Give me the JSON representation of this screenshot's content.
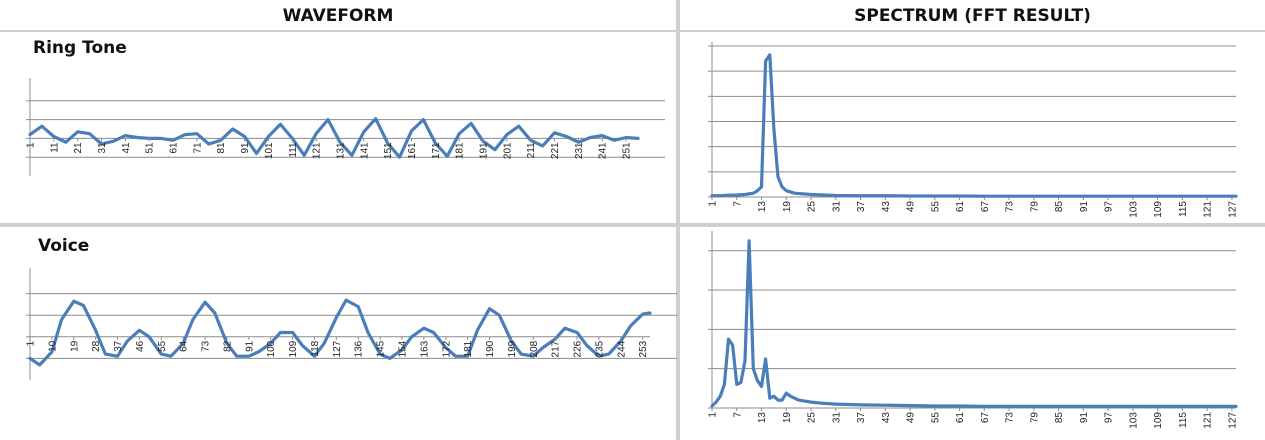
{
  "headers": {
    "left": "WAVEFORM",
    "right": "SPECTRUM (FFT RESULT)"
  },
  "panels": {
    "ring_label": "Ring Tone",
    "voice_label": "Voice"
  },
  "colors": {
    "line": "#4a7ebb",
    "grid": "#8c8c8c",
    "axis": "#8c8c8c",
    "separator": "#cfcfcf"
  },
  "chart_data": [
    {
      "id": "ring-waveform",
      "type": "line",
      "title": "",
      "xlabel": "",
      "ylabel": "",
      "x_ticks": [
        "1",
        "11",
        "21",
        "31",
        "41",
        "51",
        "61",
        "71",
        "81",
        "91",
        "101",
        "111",
        "121",
        "131",
        "141",
        "151",
        "161",
        "171",
        "181",
        "191",
        "201",
        "211",
        "221",
        "231",
        "241",
        "251"
      ],
      "ylim": [
        -2,
        3
      ],
      "x": [
        1,
        6,
        11,
        16,
        21,
        26,
        31,
        36,
        41,
        46,
        51,
        56,
        61,
        66,
        71,
        76,
        81,
        86,
        91,
        96,
        101,
        106,
        111,
        116,
        121,
        126,
        131,
        136,
        141,
        146,
        151,
        156,
        161,
        166,
        171,
        176,
        181,
        186,
        191,
        196,
        201,
        206,
        211,
        216,
        221,
        226,
        231,
        236,
        241,
        246,
        251,
        256
      ],
      "values": [
        0.2,
        0.65,
        0.1,
        -0.2,
        0.35,
        0.25,
        -0.3,
        -0.15,
        0.15,
        0.05,
        0.0,
        0.0,
        -0.1,
        0.2,
        0.25,
        -0.3,
        -0.1,
        0.5,
        0.1,
        -0.8,
        0.1,
        0.75,
        0.0,
        -0.9,
        0.25,
        1.0,
        -0.2,
        -0.9,
        0.35,
        1.05,
        -0.25,
        -1.0,
        0.4,
        1.0,
        -0.25,
        -0.95,
        0.25,
        0.8,
        -0.15,
        -0.6,
        0.2,
        0.65,
        -0.1,
        -0.4,
        0.3,
        0.1,
        -0.2,
        0.05,
        0.15,
        -0.1,
        0.05,
        0.0
      ]
    },
    {
      "id": "ring-spectrum",
      "type": "line",
      "title": "",
      "xlabel": "",
      "ylabel": "",
      "x_ticks": [
        "1",
        "7",
        "13",
        "19",
        "25",
        "31",
        "37",
        "43",
        "49",
        "55",
        "61",
        "67",
        "73",
        "79",
        "85",
        "91",
        "97",
        "103",
        "109",
        "115",
        "121",
        "127"
      ],
      "ylim": [
        0,
        6
      ],
      "x": [
        1,
        3,
        5,
        7,
        9,
        11,
        12,
        13,
        14,
        15,
        16,
        17,
        18,
        19,
        21,
        25,
        31,
        37,
        43,
        49,
        55,
        61,
        67,
        73,
        79,
        85,
        91,
        97,
        103,
        109,
        115,
        121,
        127,
        128
      ],
      "values": [
        0.05,
        0.05,
        0.07,
        0.08,
        0.1,
        0.15,
        0.25,
        0.4,
        5.4,
        5.65,
        2.7,
        0.8,
        0.4,
        0.25,
        0.15,
        0.1,
        0.06,
        0.05,
        0.05,
        0.04,
        0.04,
        0.04,
        0.03,
        0.03,
        0.03,
        0.03,
        0.03,
        0.03,
        0.03,
        0.03,
        0.03,
        0.03,
        0.03,
        0.03
      ]
    },
    {
      "id": "voice-waveform",
      "type": "line",
      "title": "",
      "xlabel": "",
      "ylabel": "",
      "x_ticks": [
        "1",
        "10",
        "19",
        "28",
        "37",
        "46",
        "55",
        "64",
        "73",
        "82",
        "91",
        "100",
        "109",
        "118",
        "127",
        "136",
        "145",
        "154",
        "163",
        "172",
        "181",
        "190",
        "199",
        "208",
        "217",
        "226",
        "235",
        "244",
        "253"
      ],
      "ylim": [
        -2,
        3
      ],
      "x": [
        1,
        5,
        10,
        14,
        19,
        23,
        28,
        32,
        37,
        41,
        46,
        50,
        55,
        59,
        64,
        68,
        73,
        77,
        82,
        86,
        91,
        95,
        100,
        104,
        109,
        113,
        118,
        122,
        127,
        131,
        136,
        140,
        145,
        149,
        154,
        158,
        163,
        167,
        172,
        176,
        181,
        185,
        190,
        194,
        199,
        203,
        208,
        212,
        217,
        221,
        226,
        230,
        235,
        239,
        244,
        248,
        253,
        256
      ],
      "values": [
        -1.0,
        -1.3,
        -0.7,
        0.8,
        1.65,
        1.45,
        0.3,
        -0.8,
        -0.9,
        -0.2,
        0.3,
        0.0,
        -0.8,
        -0.9,
        -0.3,
        0.8,
        1.6,
        1.1,
        -0.3,
        -0.9,
        -0.9,
        -0.7,
        -0.3,
        0.2,
        0.2,
        -0.4,
        -0.9,
        -0.3,
        0.9,
        1.7,
        1.4,
        0.2,
        -0.8,
        -1.0,
        -0.6,
        0.0,
        0.4,
        0.2,
        -0.5,
        -0.9,
        -0.9,
        0.3,
        1.3,
        1.0,
        -0.2,
        -0.8,
        -0.9,
        -0.5,
        -0.1,
        0.4,
        0.2,
        -0.4,
        -0.9,
        -0.8,
        -0.2,
        0.5,
        1.05,
        1.1
      ]
    },
    {
      "id": "voice-spectrum",
      "type": "line",
      "title": "",
      "xlabel": "",
      "ylabel": "",
      "x_ticks": [
        "1",
        "7",
        "13",
        "19",
        "25",
        "31",
        "37",
        "43",
        "49",
        "55",
        "61",
        "67",
        "73",
        "79",
        "85",
        "91",
        "97",
        "103",
        "109",
        "115",
        "121",
        "127"
      ],
      "ylim": [
        0,
        4.4
      ],
      "x": [
        1,
        2,
        3,
        4,
        5,
        6,
        7,
        8,
        9,
        10,
        11,
        12,
        13,
        14,
        15,
        16,
        17,
        18,
        19,
        20,
        22,
        25,
        28,
        31,
        37,
        43,
        49,
        55,
        61,
        67,
        73,
        79,
        85,
        91,
        97,
        103,
        109,
        115,
        121,
        127,
        128
      ],
      "values": [
        0.05,
        0.15,
        0.3,
        0.6,
        1.75,
        1.6,
        0.6,
        0.65,
        1.2,
        4.25,
        1.0,
        0.7,
        0.55,
        1.25,
        0.25,
        0.3,
        0.2,
        0.2,
        0.38,
        0.3,
        0.2,
        0.15,
        0.12,
        0.1,
        0.08,
        0.07,
        0.06,
        0.05,
        0.05,
        0.04,
        0.04,
        0.04,
        0.04,
        0.04,
        0.04,
        0.04,
        0.04,
        0.04,
        0.04,
        0.04,
        0.04
      ]
    }
  ]
}
